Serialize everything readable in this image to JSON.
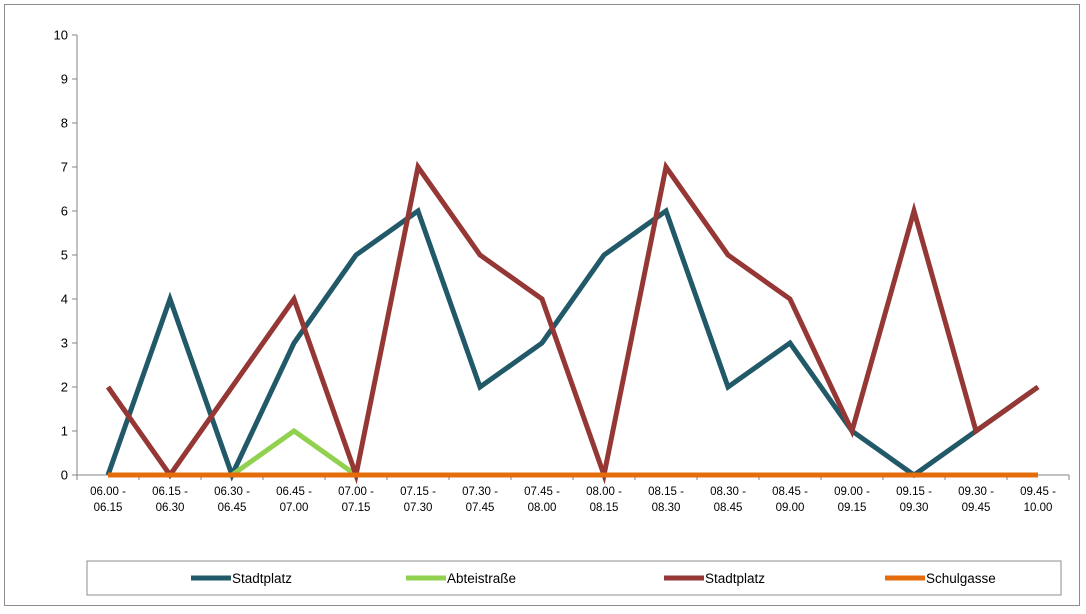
{
  "chart_data": {
    "type": "line",
    "title": "",
    "xlabel": "",
    "ylabel": "",
    "ylim": [
      0,
      10
    ],
    "yticks": [
      0,
      1,
      2,
      3,
      4,
      5,
      6,
      7,
      8,
      9,
      10
    ],
    "grid": false,
    "legend_position": "bottom",
    "categories": [
      [
        "06.00 -",
        "06.15"
      ],
      [
        "06.15 -",
        "06.30"
      ],
      [
        "06.30 -",
        "06.45"
      ],
      [
        "06.45 -",
        "07.00"
      ],
      [
        "07.00 -",
        "07.15"
      ],
      [
        "07.15 -",
        "07.30"
      ],
      [
        "07.30 -",
        "07.45"
      ],
      [
        "07.45 -",
        "08.00"
      ],
      [
        "08.00 -",
        "08.15"
      ],
      [
        "08.15 -",
        "08.30"
      ],
      [
        "08.30 -",
        "08.45"
      ],
      [
        "08.45 -",
        "09.00"
      ],
      [
        "09.00 -",
        "09.15"
      ],
      [
        "09.15 -",
        "09.30"
      ],
      [
        "09.30 -",
        "09.45"
      ],
      [
        "09.45 -",
        "10.00"
      ]
    ],
    "series": [
      {
        "name": "Stadtplatz",
        "color": "#215968",
        "values": [
          0,
          4,
          0,
          3,
          5,
          6,
          2,
          3,
          5,
          6,
          2,
          3,
          1,
          0,
          1,
          2
        ]
      },
      {
        "name": "Abteistraße",
        "color": "#92D050",
        "values": [
          0,
          0,
          0,
          1,
          0,
          0,
          0,
          0,
          0,
          0,
          0,
          0,
          0,
          0,
          0,
          0
        ]
      },
      {
        "name": "Stadtplatz",
        "color": "#953735",
        "values": [
          2,
          0,
          2,
          4,
          0,
          7,
          5,
          4,
          0,
          7,
          5,
          4,
          1,
          6,
          1,
          2
        ]
      },
      {
        "name": "Schulgasse",
        "color": "#E46C0A",
        "values": [
          0,
          0,
          0,
          0,
          0,
          0,
          0,
          0,
          0,
          0,
          0,
          0,
          0,
          0,
          0,
          0
        ]
      }
    ]
  }
}
